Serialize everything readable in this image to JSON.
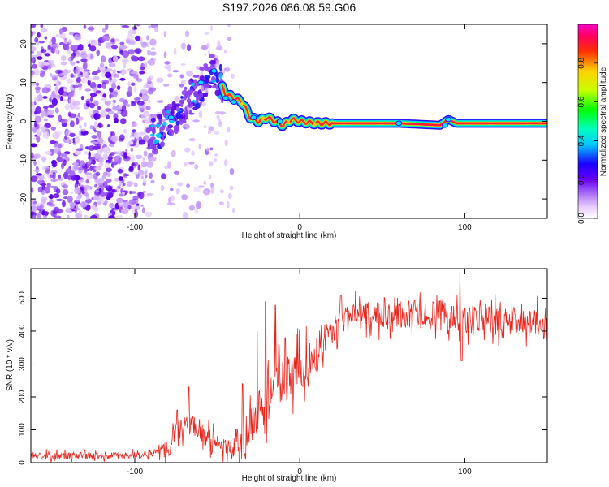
{
  "page": {
    "title": "S197.2026.086.08.59.G06"
  },
  "chart_data": [
    {
      "type": "heatmap",
      "title": "S197.2026.086.08.59.G06",
      "xlabel": "Height of straight line (km)",
      "ylabel": "Frequency (Hz)",
      "xlim": [
        -163,
        150
      ],
      "ylim": [
        -25,
        25
      ],
      "xticks": [
        -100,
        0,
        100
      ],
      "yticks": [
        -20,
        -10,
        0,
        10,
        20
      ],
      "colorbar": {
        "label": "Normalized spectral amplitude",
        "range": [
          0,
          1
        ],
        "ticks": [
          "0.0",
          "0.2",
          "0.4",
          "0.6",
          "0.8"
        ]
      },
      "ridge": {
        "description_points_x": [
          -88,
          -80,
          -70,
          -60,
          -52,
          -45,
          -40,
          -35,
          -30,
          -25,
          -20,
          -15,
          -10,
          -5,
          0,
          10,
          20,
          40,
          60,
          85,
          90,
          95,
          150
        ],
        "description_points_y": [
          -4,
          0,
          4,
          9,
          13,
          7,
          6,
          5,
          1,
          0,
          1,
          0,
          -1,
          0.5,
          0,
          -0.5,
          -0.5,
          -0.5,
          -0.5,
          -1,
          0.5,
          -0.5,
          -0.5
        ]
      }
    },
    {
      "type": "line",
      "xlabel": "Height of straight line (km)",
      "ylabel": "SNR (10 * v/v)",
      "xlim": [
        -163,
        150
      ],
      "ylim": [
        0,
        590
      ],
      "xticks": [
        -100,
        0,
        100
      ],
      "yticks": [
        0,
        100,
        200,
        300,
        400,
        500
      ],
      "series": [
        {
          "name": "SNR",
          "color": "#e8261e",
          "trend_x": [
            -163,
            -110,
            -90,
            -80,
            -75,
            -70,
            -65,
            -60,
            -50,
            -40,
            -35,
            -30,
            -25,
            -20,
            -15,
            -10,
            -5,
            0,
            5,
            10,
            15,
            20,
            30,
            40,
            60,
            80,
            95,
            100,
            120,
            150
          ],
          "trend_y": [
            20,
            22,
            28,
            45,
            90,
            110,
            120,
            95,
            50,
            38,
            25,
            120,
            150,
            190,
            220,
            250,
            260,
            280,
            300,
            330,
            380,
            410,
            440,
            445,
            450,
            450,
            445,
            440,
            430,
            425
          ],
          "spikes_x": [
            -74,
            -67,
            -35,
            -26,
            -21,
            -15,
            -9,
            -3,
            15,
            25,
            60,
            97,
            98
          ],
          "spikes_y": [
            160,
            230,
            240,
            400,
            490,
            480,
            380,
            320,
            420,
            510,
            520,
            590,
            310
          ]
        }
      ]
    }
  ]
}
